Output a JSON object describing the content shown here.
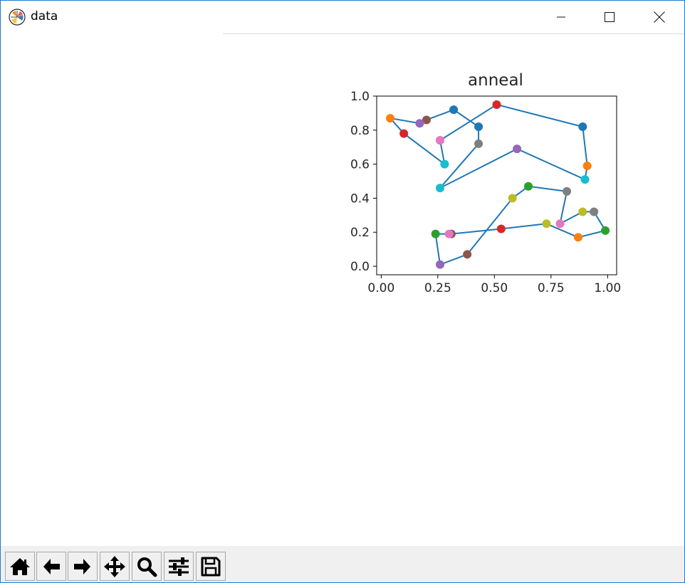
{
  "window": {
    "title": "data",
    "controls": [
      "minimize",
      "maximize",
      "close"
    ]
  },
  "toolbar": {
    "buttons": [
      {
        "name": "home",
        "icon": "home-icon"
      },
      {
        "name": "back",
        "icon": "arrow-left-icon"
      },
      {
        "name": "forward",
        "icon": "arrow-right-icon"
      },
      {
        "name": "pan",
        "icon": "move-icon"
      },
      {
        "name": "zoom",
        "icon": "magnifier-icon"
      },
      {
        "name": "configure-subplots",
        "icon": "sliders-icon"
      },
      {
        "name": "save",
        "icon": "floppy-disk-icon"
      }
    ]
  },
  "chart_data": {
    "type": "scatter",
    "title": "anneal",
    "xlabel": "",
    "ylabel": "",
    "xlim": [
      -0.02,
      1.04
    ],
    "ylim": [
      -0.05,
      1.0
    ],
    "xticks": [
      "0.00",
      "0.25",
      "0.50",
      "0.75",
      "1.00"
    ],
    "yticks": [
      "0.0",
      "0.2",
      "0.4",
      "0.6",
      "0.8",
      "1.0"
    ],
    "grid": false,
    "line_color": "#1f77b4",
    "points": [
      {
        "x": 0.26,
        "y": 0.74,
        "color": "#e377c2"
      },
      {
        "x": 0.51,
        "y": 0.95,
        "color": "#d62728"
      },
      {
        "x": 0.89,
        "y": 0.82,
        "color": "#1f77b4"
      },
      {
        "x": 0.91,
        "y": 0.59,
        "color": "#ff7f0e"
      },
      {
        "x": 0.9,
        "y": 0.51,
        "color": "#17becf"
      },
      {
        "x": 0.6,
        "y": 0.69,
        "color": "#9467bd"
      },
      {
        "x": 0.26,
        "y": 0.46,
        "color": "#17becf"
      },
      {
        "x": 0.43,
        "y": 0.72,
        "color": "#7f7f7f"
      },
      {
        "x": 0.43,
        "y": 0.82,
        "color": "#1f77b4"
      },
      {
        "x": 0.32,
        "y": 0.92,
        "color": "#1f77b4"
      },
      {
        "x": 0.2,
        "y": 0.86,
        "color": "#8c564b"
      },
      {
        "x": 0.17,
        "y": 0.84,
        "color": "#9467bd"
      },
      {
        "x": 0.04,
        "y": 0.87,
        "color": "#ff7f0e"
      },
      {
        "x": 0.1,
        "y": 0.78,
        "color": "#d62728"
      },
      {
        "x": 0.28,
        "y": 0.6,
        "color": "#17becf"
      },
      {
        "x": 0.26,
        "y": 0.74,
        "color": "#e377c2"
      },
      {
        "x": 0.38,
        "y": 0.07,
        "color": "#8c564b"
      },
      {
        "x": 0.58,
        "y": 0.4,
        "color": "#bcbd22"
      },
      {
        "x": 0.65,
        "y": 0.47,
        "color": "#2ca02c"
      },
      {
        "x": 0.82,
        "y": 0.44,
        "color": "#7f7f7f"
      },
      {
        "x": 0.79,
        "y": 0.25,
        "color": "#e377c2"
      },
      {
        "x": 0.89,
        "y": 0.32,
        "color": "#bcbd22"
      },
      {
        "x": 0.94,
        "y": 0.32,
        "color": "#7f7f7f"
      },
      {
        "x": 0.99,
        "y": 0.21,
        "color": "#2ca02c"
      },
      {
        "x": 0.87,
        "y": 0.17,
        "color": "#ff7f0e"
      },
      {
        "x": 0.73,
        "y": 0.25,
        "color": "#bcbd22"
      },
      {
        "x": 0.53,
        "y": 0.22,
        "color": "#d62728"
      },
      {
        "x": 0.31,
        "y": 0.19,
        "color": "#8c564b"
      },
      {
        "x": 0.3,
        "y": 0.19,
        "color": "#e377c2"
      },
      {
        "x": 0.24,
        "y": 0.19,
        "color": "#2ca02c"
      },
      {
        "x": 0.26,
        "y": 0.01,
        "color": "#9467bd"
      }
    ],
    "path": [
      [
        0.26,
        0.74
      ],
      [
        0.51,
        0.95
      ],
      [
        0.89,
        0.82
      ],
      [
        0.91,
        0.59
      ],
      [
        0.9,
        0.51
      ],
      [
        0.6,
        0.69
      ],
      [
        0.26,
        0.46
      ],
      [
        0.43,
        0.72
      ],
      [
        0.43,
        0.82
      ],
      [
        0.32,
        0.92
      ],
      [
        0.2,
        0.86
      ],
      [
        0.17,
        0.84
      ],
      [
        0.04,
        0.87
      ],
      [
        0.1,
        0.78
      ],
      [
        0.28,
        0.6
      ],
      [
        0.26,
        0.74
      ]
    ],
    "path2": [
      [
        0.26,
        0.01
      ],
      [
        0.38,
        0.07
      ],
      [
        0.58,
        0.4
      ],
      [
        0.65,
        0.47
      ],
      [
        0.82,
        0.44
      ],
      [
        0.79,
        0.25
      ],
      [
        0.89,
        0.32
      ],
      [
        0.94,
        0.32
      ],
      [
        0.99,
        0.21
      ],
      [
        0.87,
        0.17
      ],
      [
        0.73,
        0.25
      ],
      [
        0.53,
        0.22
      ],
      [
        0.31,
        0.19
      ],
      [
        0.3,
        0.19
      ],
      [
        0.24,
        0.19
      ],
      [
        0.26,
        0.01
      ]
    ]
  }
}
